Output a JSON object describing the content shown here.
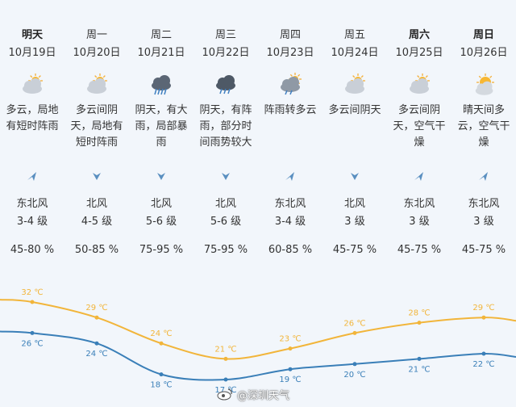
{
  "days": [
    {
      "day": "明天",
      "bold": true,
      "date": "10月19日",
      "icon": "partly-cloudy-icon",
      "desc": [
        "多云，局地",
        "有短时阵雨"
      ],
      "wind_icon": "wind-arrow-icon",
      "wind_dir": "东北风",
      "wind_lvl": "3-4 级",
      "humidity": "45-80 %",
      "tinted": true
    },
    {
      "day": "周一",
      "bold": false,
      "date": "10月20日",
      "icon": "partly-cloudy-icon",
      "desc": [
        "多云间阴",
        "天，局地有",
        "短时阵雨"
      ],
      "wind_icon": "wind-arrow-down-icon",
      "wind_dir": "北风",
      "wind_lvl": "4-5 级",
      "humidity": "50-85 %",
      "tinted": true
    },
    {
      "day": "周二",
      "bold": false,
      "date": "10月21日",
      "icon": "heavy-rain-icon",
      "desc": [
        "阴天，有大",
        "雨，局部暴",
        "雨"
      ],
      "wind_icon": "wind-arrow-down-icon",
      "wind_dir": "北风",
      "wind_lvl": "5-6 级",
      "humidity": "75-95 %",
      "tinted": true
    },
    {
      "day": "周三",
      "bold": false,
      "date": "10月22日",
      "icon": "rain-icon",
      "desc": [
        "阴天，有阵",
        "雨，部分时",
        "间雨势较大"
      ],
      "wind_icon": "wind-arrow-down-icon",
      "wind_dir": "北风",
      "wind_lvl": "5-6 级",
      "humidity": "75-95 %",
      "tinted": true
    },
    {
      "day": "周四",
      "bold": false,
      "date": "10月23日",
      "icon": "shower-icon",
      "desc": [
        "阵雨转多云"
      ],
      "wind_icon": "wind-arrow-icon",
      "wind_dir": "东北风",
      "wind_lvl": "3-4 级",
      "humidity": "60-85 %",
      "tinted": true
    },
    {
      "day": "周五",
      "bold": false,
      "date": "10月24日",
      "icon": "partly-cloudy-icon",
      "desc": [
        "多云间阴天"
      ],
      "wind_icon": "wind-arrow-down-icon",
      "wind_dir": "北风",
      "wind_lvl": "3 级",
      "humidity": "45-75 %",
      "tinted": true
    },
    {
      "day": "周六",
      "bold": true,
      "date": "10月25日",
      "icon": "partly-cloudy-icon",
      "desc": [
        "多云间阴",
        "天，空气干",
        "燥"
      ],
      "wind_icon": "wind-arrow-icon",
      "wind_dir": "东北风",
      "wind_lvl": "3 级",
      "humidity": "45-75 %",
      "tinted": true
    },
    {
      "day": "周日",
      "bold": true,
      "date": "10月26日",
      "icon": "sunny-cloudy-icon",
      "desc": [
        "晴天间多",
        "云，空气干",
        "燥"
      ],
      "wind_icon": "wind-arrow-icon",
      "wind_dir": "东北风",
      "wind_lvl": "3 级",
      "humidity": "45-75 %",
      "tinted": true
    }
  ],
  "chart_data": {
    "type": "line",
    "x": [
      "10月19日",
      "10月20日",
      "10月21日",
      "10月22日",
      "10月23日",
      "10月24日",
      "10月25日",
      "10月26日"
    ],
    "series": [
      {
        "values": [
          32,
          29,
          24,
          21,
          23,
          26,
          28,
          29
        ],
        "labels": [
          "32 ℃",
          "29 ℃",
          "24 ℃",
          "21 ℃",
          "23 ℃",
          "26 ℃",
          "28 ℃",
          "29 ℃"
        ],
        "color": "#f2b53a"
      },
      {
        "values": [
          26,
          24,
          18,
          17,
          19,
          20,
          21,
          22
        ],
        "labels": [
          "26 ℃",
          "24 ℃",
          "18 ℃",
          "17 ℃",
          "19 ℃",
          "20 ℃",
          "21 ℃",
          "22 ℃"
        ],
        "color": "#3a7fb8"
      }
    ]
  },
  "watermark": {
    "text": "@深圳天气",
    "icon": "weibo-logo-icon"
  }
}
